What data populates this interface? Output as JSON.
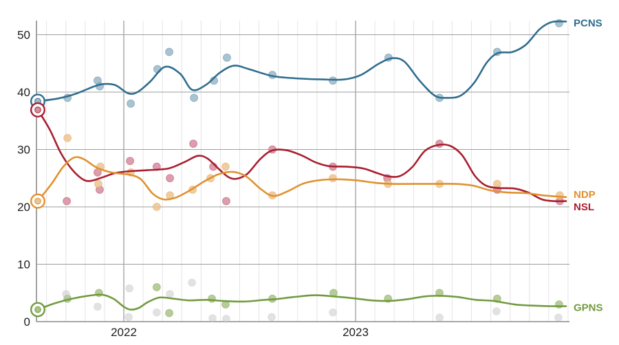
{
  "chart_data": {
    "type": "scatter",
    "title": "",
    "description": "Opinion polling trend chart: smoothed trend lines with individual poll dots for four parties (PCNS, NSL, NDP, GPNS) plus unlabeled grey 'others' dots; circled dots at the left edge mark starting (election) values in mid-2021.",
    "grid": true,
    "legend_position": "right-end-of-line-labels",
    "x_axis": {
      "domain": [
        2021.6,
        2023.93
      ],
      "year_ticks": [
        {
          "label": "2022",
          "t": 2022
        },
        {
          "label": "2023",
          "t": 2023
        }
      ],
      "minor_gridlines": "monthly"
    },
    "y_axis": {
      "domain": [
        0,
        53
      ],
      "ticks": [
        {
          "label": "0",
          "v": 0
        },
        {
          "label": "10",
          "v": 10
        },
        {
          "label": "20",
          "v": 20
        },
        {
          "label": "30",
          "v": 30
        },
        {
          "label": "40",
          "v": 40
        },
        {
          "label": "50",
          "v": 50
        }
      ]
    },
    "series": [
      {
        "id": "pcns",
        "label": "PCNS",
        "line_color": "#2e6d8e",
        "point_color": "#9cb9c9",
        "label_offset": 2,
        "election": [
          2021.629,
          38.4
        ],
        "points": [
          [
            2021.757,
            39
          ],
          [
            2021.887,
            42
          ],
          [
            2021.896,
            41
          ],
          [
            2022.03,
            38
          ],
          [
            2022.145,
            44
          ],
          [
            2022.196,
            47
          ],
          [
            2022.303,
            39
          ],
          [
            2022.389,
            42
          ],
          [
            2022.445,
            46
          ],
          [
            2022.641,
            43
          ],
          [
            2022.902,
            42
          ],
          [
            2023.142,
            46
          ],
          [
            2023.362,
            39
          ],
          [
            2023.611,
            47
          ],
          [
            2023.878,
            52
          ]
        ],
        "trend": [
          [
            2021.629,
            38.4
          ],
          [
            2021.718,
            38.9
          ],
          [
            2021.792,
            39.7
          ],
          [
            2021.866,
            40.9
          ],
          [
            2021.911,
            41.4
          ],
          [
            2021.964,
            41.2
          ],
          [
            2022.018,
            39.8
          ],
          [
            2022.059,
            40.0
          ],
          [
            2022.113,
            41.8
          ],
          [
            2022.178,
            44.4
          ],
          [
            2022.243,
            43.2
          ],
          [
            2022.295,
            40.4
          ],
          [
            2022.356,
            41.3
          ],
          [
            2022.415,
            43.4
          ],
          [
            2022.475,
            44.6
          ],
          [
            2022.54,
            44.0
          ],
          [
            2022.641,
            42.8
          ],
          [
            2022.742,
            42.4
          ],
          [
            2022.86,
            42.2
          ],
          [
            2022.95,
            42.2
          ],
          [
            2023.024,
            43.0
          ],
          [
            2023.098,
            44.9
          ],
          [
            2023.157,
            45.9
          ],
          [
            2023.211,
            45.3
          ],
          [
            2023.276,
            42.0
          ],
          [
            2023.341,
            39.4
          ],
          [
            2023.395,
            39.0
          ],
          [
            2023.454,
            39.4
          ],
          [
            2023.513,
            41.7
          ],
          [
            2023.567,
            45.2
          ],
          [
            2023.614,
            46.8
          ],
          [
            2023.677,
            47.0
          ],
          [
            2023.736,
            48.3
          ],
          [
            2023.795,
            51.0
          ],
          [
            2023.846,
            52.2
          ],
          [
            2023.908,
            52.3
          ]
        ]
      },
      {
        "id": "nsl",
        "label": "NSL",
        "line_color": "#a81e2e",
        "point_color": "#d68da0",
        "label_offset": 8,
        "election": [
          2021.629,
          36.9
        ],
        "points": [
          [
            2021.754,
            21
          ],
          [
            2021.887,
            26
          ],
          [
            2021.896,
            23
          ],
          [
            2022.027,
            28
          ],
          [
            2022.142,
            27
          ],
          [
            2022.199,
            25
          ],
          [
            2022.3,
            31
          ],
          [
            2022.386,
            27
          ],
          [
            2022.442,
            21
          ],
          [
            2022.641,
            30
          ],
          [
            2022.902,
            27
          ],
          [
            2023.137,
            25
          ],
          [
            2023.362,
            31
          ],
          [
            2023.611,
            23
          ],
          [
            2023.881,
            21
          ]
        ],
        "trend": [
          [
            2021.629,
            36.9
          ],
          [
            2021.68,
            33.5
          ],
          [
            2021.727,
            29.5
          ],
          [
            2021.771,
            26.8
          ],
          [
            2021.816,
            25.0
          ],
          [
            2021.852,
            24.5
          ],
          [
            2021.905,
            25.1
          ],
          [
            2021.964,
            25.9
          ],
          [
            2022.024,
            26.2
          ],
          [
            2022.104,
            26.4
          ],
          [
            2022.193,
            26.7
          ],
          [
            2022.261,
            27.8
          ],
          [
            2022.32,
            28.9
          ],
          [
            2022.362,
            28.4
          ],
          [
            2022.41,
            26.6
          ],
          [
            2022.451,
            25.2
          ],
          [
            2022.487,
            24.9
          ],
          [
            2022.534,
            25.8
          ],
          [
            2022.588,
            28.3
          ],
          [
            2022.638,
            29.8
          ],
          [
            2022.697,
            29.9
          ],
          [
            2022.766,
            29.0
          ],
          [
            2022.825,
            27.8
          ],
          [
            2022.884,
            27.1
          ],
          [
            2022.964,
            27.0
          ],
          [
            2023.033,
            26.7
          ],
          [
            2023.092,
            25.9
          ],
          [
            2023.142,
            25.3
          ],
          [
            2023.193,
            25.4
          ],
          [
            2023.246,
            27.0
          ],
          [
            2023.3,
            29.8
          ],
          [
            2023.359,
            30.8
          ],
          [
            2023.41,
            30.6
          ],
          [
            2023.46,
            29.0
          ],
          [
            2023.513,
            25.5
          ],
          [
            2023.558,
            23.8
          ],
          [
            2023.608,
            23.3
          ],
          [
            2023.685,
            23.2
          ],
          [
            2023.745,
            22.5
          ],
          [
            2023.804,
            21.3
          ],
          [
            2023.854,
            21.0
          ],
          [
            2023.908,
            21.0
          ]
        ]
      },
      {
        "id": "ndp",
        "label": "NDP",
        "line_color": "#e0912f",
        "point_color": "#ecc492",
        "label_offset": -4,
        "election": [
          2021.629,
          21.0
        ],
        "points": [
          [
            2021.757,
            32
          ],
          [
            2021.89,
            24
          ],
          [
            2021.899,
            27
          ],
          [
            2022.03,
            26
          ],
          [
            2022.142,
            20
          ],
          [
            2022.199,
            22
          ],
          [
            2022.297,
            23
          ],
          [
            2022.374,
            25
          ],
          [
            2022.439,
            27
          ],
          [
            2022.641,
            22
          ],
          [
            2022.902,
            25
          ],
          [
            2023.14,
            24
          ],
          [
            2023.362,
            24
          ],
          [
            2023.611,
            24
          ],
          [
            2023.881,
            22
          ]
        ],
        "trend": [
          [
            2021.629,
            21.0
          ],
          [
            2021.688,
            24.0
          ],
          [
            2021.739,
            27.0
          ],
          [
            2021.786,
            28.6
          ],
          [
            2021.828,
            28.3
          ],
          [
            2021.881,
            26.9
          ],
          [
            2021.947,
            26.0
          ],
          [
            2022.024,
            25.6
          ],
          [
            2022.074,
            24.8
          ],
          [
            2022.125,
            22.3
          ],
          [
            2022.172,
            21.3
          ],
          [
            2022.223,
            21.6
          ],
          [
            2022.282,
            22.8
          ],
          [
            2022.35,
            24.5
          ],
          [
            2022.41,
            25.7
          ],
          [
            2022.469,
            26.1
          ],
          [
            2022.528,
            25.3
          ],
          [
            2022.588,
            23.2
          ],
          [
            2022.644,
            21.9
          ],
          [
            2022.706,
            22.7
          ],
          [
            2022.777,
            24.1
          ],
          [
            2022.855,
            24.7
          ],
          [
            2022.935,
            24.8
          ],
          [
            2023.009,
            24.6
          ],
          [
            2023.083,
            24.2
          ],
          [
            2023.157,
            24.0
          ],
          [
            2023.246,
            24.0
          ],
          [
            2023.335,
            24.0
          ],
          [
            2023.43,
            24.0
          ],
          [
            2023.507,
            23.7
          ],
          [
            2023.579,
            22.9
          ],
          [
            2023.656,
            22.5
          ],
          [
            2023.736,
            22.4
          ],
          [
            2023.81,
            22.0
          ],
          [
            2023.908,
            21.7
          ]
        ]
      },
      {
        "id": "gpns",
        "label": "GPNS",
        "line_color": "#729b3f",
        "point_color": "#a9c387",
        "label_offset": 2,
        "election": [
          2021.629,
          2.1
        ],
        "points": [
          [
            2021.757,
            4
          ],
          [
            2021.893,
            5
          ],
          [
            2022.142,
            6
          ],
          [
            2022.196,
            1.5
          ],
          [
            2022.38,
            4
          ],
          [
            2022.439,
            3
          ],
          [
            2022.641,
            4
          ],
          [
            2022.905,
            5
          ],
          [
            2023.14,
            4
          ],
          [
            2023.362,
            5
          ],
          [
            2023.611,
            4
          ],
          [
            2023.878,
            3
          ]
        ],
        "trend": [
          [
            2021.629,
            2.1
          ],
          [
            2021.703,
            3.2
          ],
          [
            2021.777,
            4.0
          ],
          [
            2021.846,
            4.5
          ],
          [
            2021.905,
            4.7
          ],
          [
            2021.955,
            4.0
          ],
          [
            2022.0,
            2.6
          ],
          [
            2022.03,
            2.1
          ],
          [
            2022.065,
            2.4
          ],
          [
            2022.104,
            3.4
          ],
          [
            2022.154,
            4.2
          ],
          [
            2022.214,
            4.0
          ],
          [
            2022.282,
            3.7
          ],
          [
            2022.356,
            3.8
          ],
          [
            2022.43,
            3.6
          ],
          [
            2022.519,
            3.5
          ],
          [
            2022.608,
            3.8
          ],
          [
            2022.653,
            3.9
          ],
          [
            2022.736,
            4.3
          ],
          [
            2022.825,
            4.6
          ],
          [
            2022.905,
            4.4
          ],
          [
            2022.985,
            4.1
          ],
          [
            2023.068,
            3.7
          ],
          [
            2023.142,
            3.6
          ],
          [
            2023.223,
            3.9
          ],
          [
            2023.3,
            4.4
          ],
          [
            2023.371,
            4.5
          ],
          [
            2023.439,
            4.3
          ],
          [
            2023.519,
            3.8
          ],
          [
            2023.596,
            3.6
          ],
          [
            2023.685,
            3.0
          ],
          [
            2023.757,
            2.8
          ],
          [
            2023.84,
            2.7
          ],
          [
            2023.908,
            2.7
          ]
        ]
      },
      {
        "id": "others",
        "label": "",
        "line_color": null,
        "point_color": "#c6c6c6",
        "label_offset": 0,
        "election": null,
        "points": [
          [
            2021.751,
            4.8
          ],
          [
            2021.887,
            2.6
          ],
          [
            2022.021,
            0.8
          ],
          [
            2022.024,
            5.8
          ],
          [
            2022.142,
            1.6
          ],
          [
            2022.199,
            4.8
          ],
          [
            2022.294,
            6.8
          ],
          [
            2022.383,
            0.6
          ],
          [
            2022.442,
            0.5
          ],
          [
            2022.638,
            0.8
          ],
          [
            2022.902,
            1.6
          ],
          [
            2023.362,
            0.7
          ],
          [
            2023.608,
            1.8
          ],
          [
            2023.875,
            0.7
          ]
        ],
        "trend": []
      }
    ],
    "style": {
      "grid_minor_color": "#e4e4e4",
      "grid_major_color": "#9e9e9e",
      "axis_color": "#8a8a8a",
      "background": "#ffffff"
    }
  }
}
